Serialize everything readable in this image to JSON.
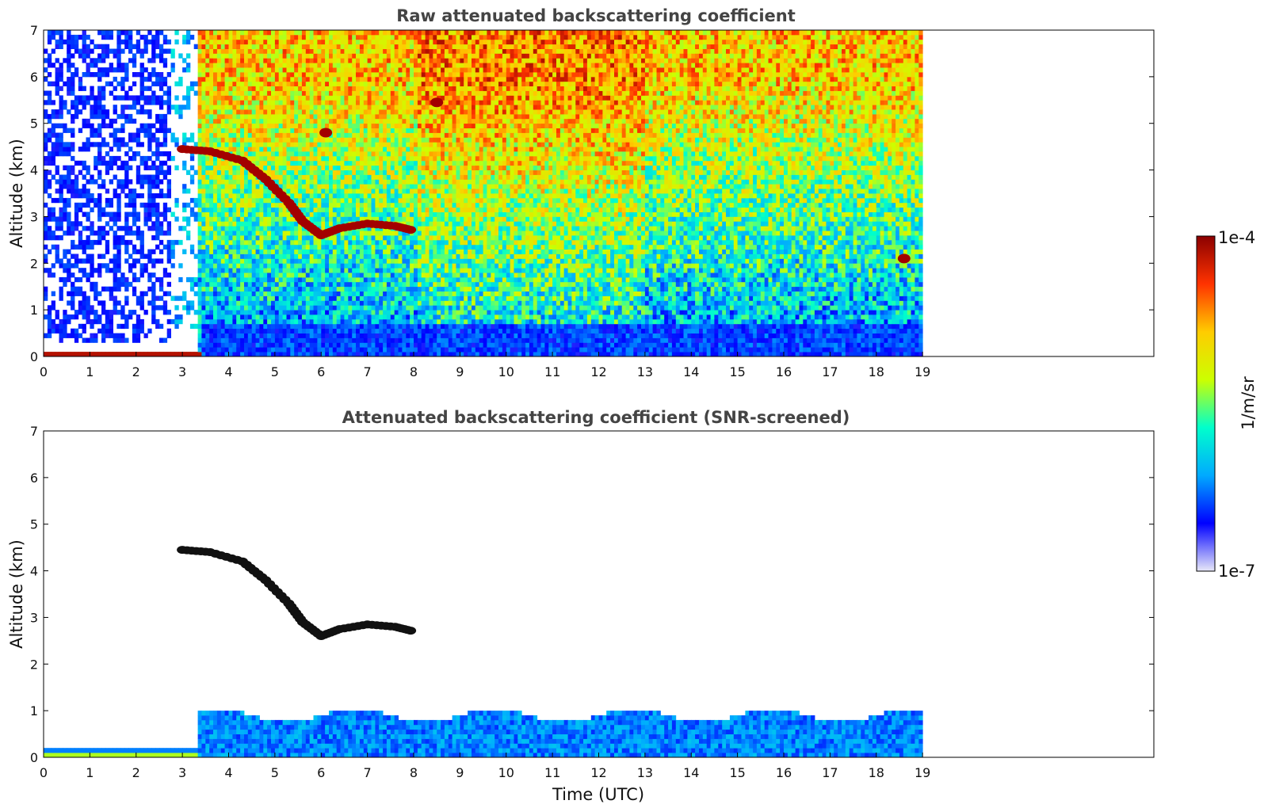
{
  "chart_data": [
    {
      "type": "heatmap",
      "title": "Raw attenuated backscattering coefficient",
      "xlabel": "",
      "ylabel": "Altitude (km)",
      "xlim": [
        0,
        24
      ],
      "ylim": [
        0,
        7
      ],
      "xticks": [
        "0",
        "1",
        "2",
        "3",
        "4",
        "5",
        "6",
        "7",
        "8",
        "9",
        "10",
        "11",
        "12",
        "13",
        "14",
        "15",
        "16",
        "17",
        "18",
        "19"
      ],
      "yticks": [
        "0",
        "1",
        "2",
        "3",
        "4",
        "5",
        "6",
        "7"
      ],
      "data_extent_x": [
        0,
        19
      ],
      "features": [
        {
          "kind": "surface layer",
          "x": [
            0,
            3.4
          ],
          "y": [
            0,
            0.15
          ],
          "level": "high"
        },
        {
          "kind": "boundary layer",
          "x": [
            3.4,
            19
          ],
          "y": [
            0,
            0.7
          ],
          "level": "medium"
        },
        {
          "kind": "cloud layer",
          "points": [
            [
              3,
              4.45
            ],
            [
              3.6,
              4.4
            ],
            [
              4.3,
              4.2
            ],
            [
              4.8,
              3.8
            ],
            [
              5.3,
              3.3
            ],
            [
              5.6,
              2.9
            ],
            [
              6,
              2.6
            ],
            [
              6.4,
              2.75
            ],
            [
              7,
              2.85
            ],
            [
              7.6,
              2.8
            ],
            [
              8,
              2.7
            ]
          ],
          "level": "high"
        },
        {
          "kind": "cloud patch",
          "x": 6.1,
          "y": 4.8,
          "level": "high"
        },
        {
          "kind": "cloud patch",
          "x": 8.5,
          "y": 5.45,
          "level": "high"
        },
        {
          "kind": "cloud patch",
          "x": 18.6,
          "y": 2.1,
          "level": "high"
        }
      ]
    },
    {
      "type": "heatmap",
      "title": "Attenuated backscattering coefficient (SNR-screened)",
      "xlabel": "Time (UTC)",
      "ylabel": "Altitude (km)",
      "xlim": [
        0,
        24
      ],
      "ylim": [
        0,
        7
      ],
      "xticks": [
        "0",
        "1",
        "2",
        "3",
        "4",
        "5",
        "6",
        "7",
        "8",
        "9",
        "10",
        "11",
        "12",
        "13",
        "14",
        "15",
        "16",
        "17",
        "18",
        "19"
      ],
      "yticks": [
        "0",
        "1",
        "2",
        "3",
        "4",
        "5",
        "6",
        "7"
      ],
      "data_extent_x": [
        0,
        19
      ],
      "features": [
        {
          "kind": "surface layer",
          "x": [
            0,
            3.4
          ],
          "y": [
            0,
            0.2
          ],
          "level": "medium"
        },
        {
          "kind": "boundary layer",
          "x": [
            3.4,
            19
          ],
          "y": [
            0,
            1.0
          ],
          "level": "medium"
        },
        {
          "kind": "cloud layer",
          "points": [
            [
              3,
              4.45
            ],
            [
              3.6,
              4.4
            ],
            [
              4.3,
              4.2
            ],
            [
              4.8,
              3.8
            ],
            [
              5.3,
              3.3
            ],
            [
              5.6,
              2.9
            ],
            [
              6,
              2.6
            ],
            [
              6.4,
              2.75
            ],
            [
              7,
              2.85
            ],
            [
              7.6,
              2.8
            ],
            [
              8,
              2.7
            ]
          ],
          "level": "high"
        }
      ]
    }
  ],
  "colorbar": {
    "label": "1/m/sr",
    "max_label": "1e-4",
    "min_label": "1e-7",
    "scale": "log",
    "range": [
      1e-07,
      0.0001
    ],
    "colormap": [
      "#e8e8f8",
      "#0000ff",
      "#00aaff",
      "#00ffcc",
      "#ccff00",
      "#ffcc00",
      "#ff3300",
      "#8b0000"
    ]
  }
}
